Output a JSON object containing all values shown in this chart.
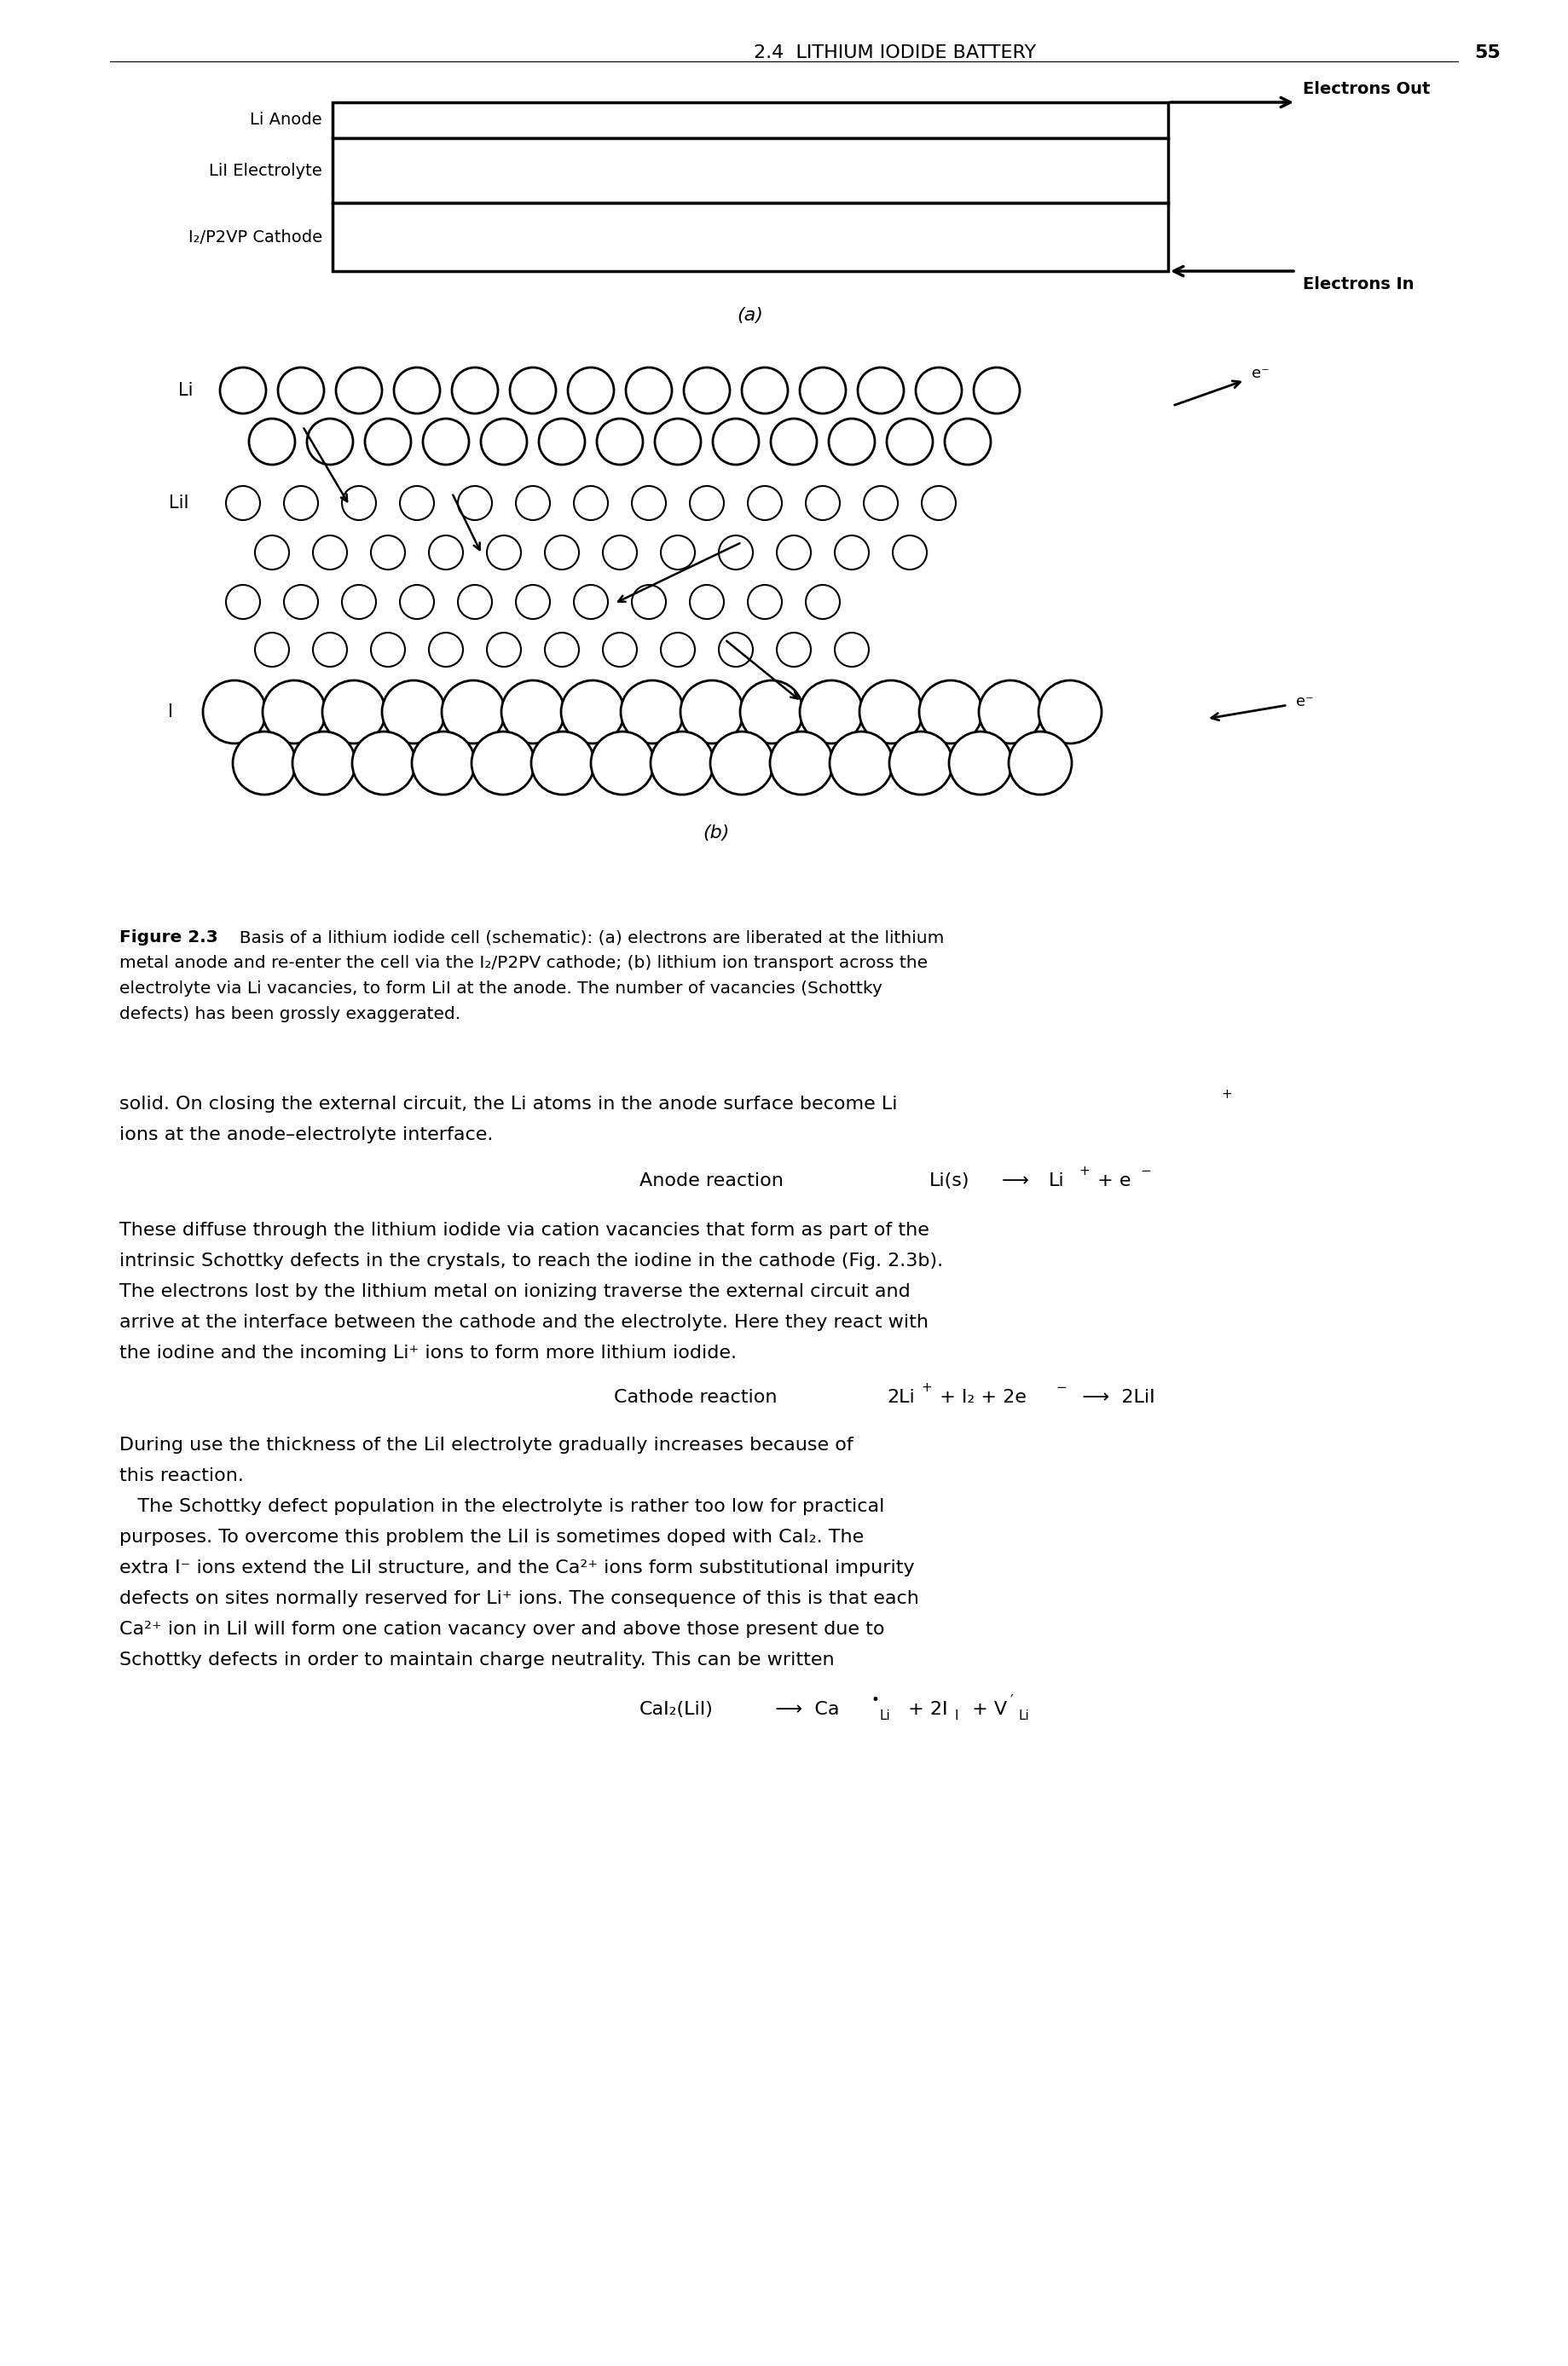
{
  "page_header": "2.4  LITHIUM IODIDE BATTERY",
  "page_number": "55",
  "fig_label_a": "(a)",
  "fig_label_b": "(b)",
  "fig_caption_bold": "Figure 2.3",
  "label_li_anode": "Li Anode",
  "label_lii_electrolyte": "LiI Electrolyte",
  "label_cathode": "I₂/P2VP Cathode",
  "electrons_out": "Electrons Out",
  "electrons_in": "Electrons In",
  "label_li": "Li",
  "label_lii": "LiI",
  "label_i": "I",
  "e_minus": "e⁻",
  "background_color": "#ffffff"
}
